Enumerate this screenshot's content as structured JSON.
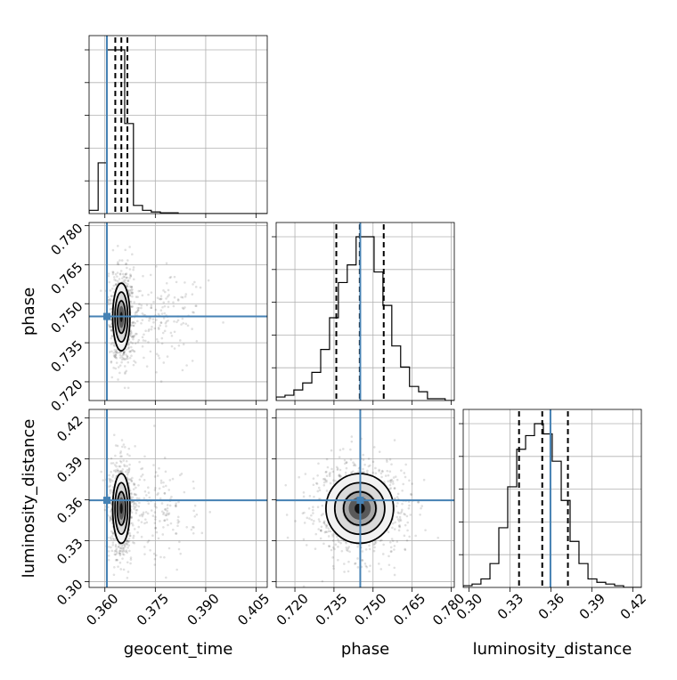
{
  "chart_data": {
    "type": "corner",
    "parameters": [
      "geocent_time",
      "phase",
      "luminosity_distance"
    ],
    "truths": {
      "geocent_time": 0.3606,
      "phase": 0.7451,
      "luminosity_distance": 0.3597
    },
    "diagonal": [
      {
        "param": "geocent_time",
        "xlim": [
          0.3553,
          0.4083
        ],
        "xticks": [
          0.36,
          0.375,
          0.39,
          0.405
        ],
        "xticklabels": [
          "0.360",
          "0.375",
          "0.390",
          "0.405"
        ],
        "quantiles": [
          0.3631,
          0.3649,
          0.3667
        ],
        "bin_edges": [
          0.3553,
          0.358,
          0.3606,
          0.3632,
          0.3659,
          0.3685,
          0.3712,
          0.3738,
          0.3765,
          0.3791,
          0.3818,
          0.4083
        ],
        "counts": [
          0.02,
          0.31,
          1.0,
          1.0,
          0.55,
          0.05,
          0.02,
          0.01,
          0.005,
          0.005,
          0.0
        ]
      },
      {
        "param": "phase",
        "xlim": [
          0.7128,
          0.7812
        ],
        "xticks": [
          0.72,
          0.735,
          0.75,
          0.765,
          0.78
        ],
        "xticklabels": [
          "0.720",
          "0.735",
          "0.750",
          "0.765",
          "0.780"
        ],
        "quantiles": [
          0.7359,
          0.7449,
          0.7541
        ],
        "bin_edges": [
          0.7128,
          0.7162,
          0.7196,
          0.723,
          0.7265,
          0.7299,
          0.7333,
          0.7367,
          0.7401,
          0.7435,
          0.747,
          0.7504,
          0.7538,
          0.7572,
          0.7606,
          0.764,
          0.7675,
          0.7709,
          0.7743,
          0.7777,
          0.7812
        ],
        "counts": [
          0.02,
          0.03,
          0.06,
          0.1,
          0.16,
          0.29,
          0.47,
          0.67,
          0.77,
          0.93,
          0.93,
          0.73,
          0.54,
          0.31,
          0.19,
          0.08,
          0.05,
          0.01,
          0.01,
          0.0
        ]
      },
      {
        "param": "luminosity_distance",
        "xlim": [
          0.2958,
          0.4263
        ],
        "xticks": [
          0.3,
          0.33,
          0.36,
          0.39,
          0.42
        ],
        "xticklabels": [
          "0.30",
          "0.33",
          "0.36",
          "0.39",
          "0.42"
        ],
        "quantiles": [
          0.3367,
          0.3537,
          0.3725
        ],
        "bin_edges": [
          0.2958,
          0.3023,
          0.3088,
          0.3154,
          0.3219,
          0.3284,
          0.335,
          0.3415,
          0.348,
          0.3545,
          0.361,
          0.3676,
          0.3741,
          0.3806,
          0.3872,
          0.3937,
          0.4002,
          0.4067,
          0.4133,
          0.4198,
          0.4263
        ],
        "counts": [
          0.01,
          0.02,
          0.05,
          0.14,
          0.35,
          0.59,
          0.81,
          0.89,
          0.96,
          0.9,
          0.74,
          0.51,
          0.27,
          0.14,
          0.05,
          0.03,
          0.02,
          0.01,
          0.0,
          0.0
        ]
      }
    ],
    "offdiagonal": [
      {
        "x": "geocent_time",
        "y": "phase",
        "ylim": [
          0.7128,
          0.7812
        ],
        "yticks": [
          0.72,
          0.735,
          0.75,
          0.765,
          0.78
        ],
        "yticklabels": [
          "0.720",
          "0.735",
          "0.750",
          "0.765",
          "0.780"
        ]
      },
      {
        "x": "geocent_time",
        "y": "luminosity_distance",
        "ylim": [
          0.2958,
          0.4263
        ],
        "yticks": [
          0.3,
          0.33,
          0.36,
          0.39,
          0.42
        ],
        "yticklabels": [
          "0.30",
          "0.33",
          "0.36",
          "0.39",
          "0.42"
        ]
      },
      {
        "x": "phase",
        "y": "luminosity_distance",
        "ylim": [
          0.2958,
          0.4263
        ],
        "yticks": [
          0.3,
          0.33,
          0.36,
          0.39,
          0.42
        ],
        "yticklabels": [
          "0.30",
          "0.33",
          "0.36",
          "0.39",
          "0.42"
        ]
      }
    ],
    "axis_labels": {
      "bottom": [
        "geocent_time",
        "phase",
        "luminosity_distance"
      ],
      "left": [
        "phase",
        "luminosity_distance"
      ]
    },
    "grid": true,
    "colors": {
      "truth": "#4682b4",
      "hist": "#000000",
      "density": "#000000"
    }
  }
}
